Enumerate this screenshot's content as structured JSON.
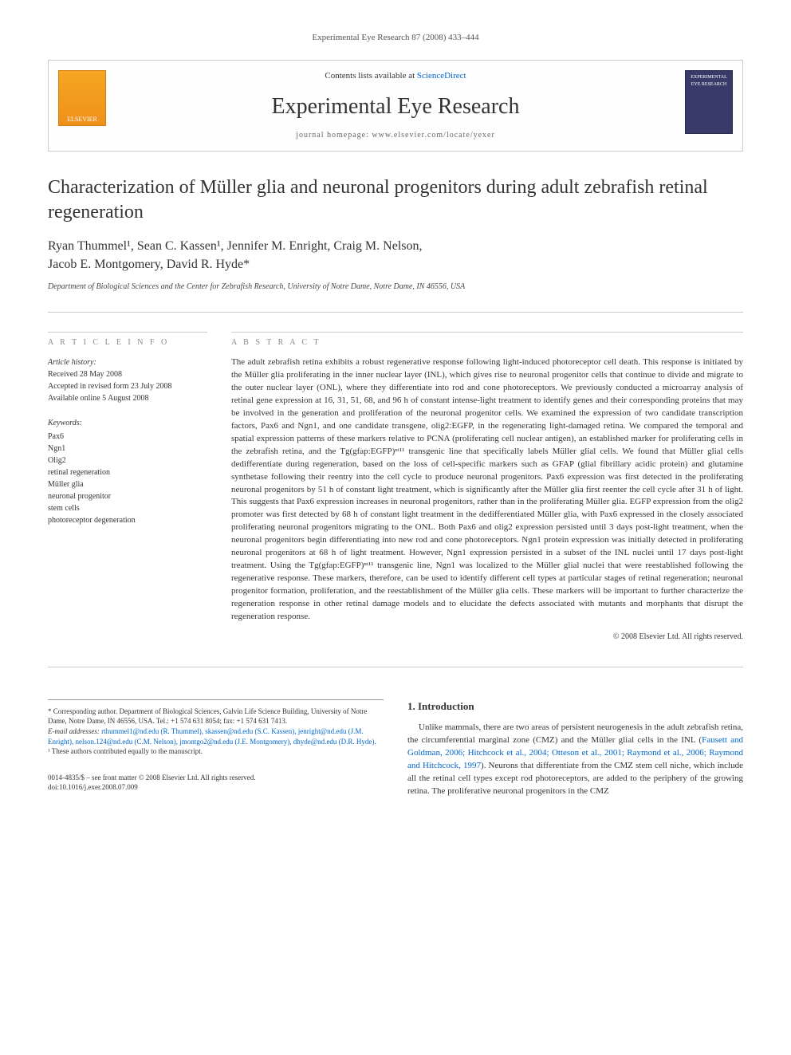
{
  "running_head": "Experimental Eye Research 87 (2008) 433–444",
  "masthead": {
    "contents_line_pre": "Contents lists available at ",
    "contents_line_link": "ScienceDirect",
    "journal_name": "Experimental Eye Research",
    "homepage_pre": "journal homepage: ",
    "homepage_url": "www.elsevier.com/locate/yexer",
    "logo_left_text": "ELSEVIER",
    "logo_right_text": "EXPERIMENTAL EYE RESEARCH"
  },
  "title": "Characterization of Müller glia and neuronal progenitors during adult zebrafish retinal regeneration",
  "authors_line1": "Ryan Thummel¹, Sean C. Kassen¹, Jennifer M. Enright, Craig M. Nelson,",
  "authors_line2": "Jacob E. Montgomery, David R. Hyde*",
  "affiliation": "Department of Biological Sciences and the Center for Zebrafish Research, University of Notre Dame, Notre Dame, IN 46556, USA",
  "labels": {
    "article_info": "A R T I C L E   I N F O",
    "abstract": "A B S T R A C T",
    "history": "Article history:",
    "keywords": "Keywords:"
  },
  "history": {
    "received": "Received 28 May 2008",
    "accepted": "Accepted in revised form 23 July 2008",
    "online": "Available online 5 August 2008"
  },
  "keywords": [
    "Pax6",
    "Ngn1",
    "Olig2",
    "retinal regeneration",
    "Müller glia",
    "neuronal progenitor",
    "stem cells",
    "photoreceptor degeneration"
  ],
  "abstract": "The adult zebrafish retina exhibits a robust regenerative response following light-induced photoreceptor cell death. This response is initiated by the Müller glia proliferating in the inner nuclear layer (INL), which gives rise to neuronal progenitor cells that continue to divide and migrate to the outer nuclear layer (ONL), where they differentiate into rod and cone photoreceptors. We previously conducted a microarray analysis of retinal gene expression at 16, 31, 51, 68, and 96 h of constant intense-light treatment to identify genes and their corresponding proteins that may be involved in the generation and proliferation of the neuronal progenitor cells. We examined the expression of two candidate transcription factors, Pax6 and Ngn1, and one candidate transgene, olig2:EGFP, in the regenerating light-damaged retina. We compared the temporal and spatial expression patterns of these markers relative to PCNA (proliferating cell nuclear antigen), an established marker for proliferating cells in the zebrafish retina, and the Tg(gfap:EGFP)ⁿᵗ¹¹ transgenic line that specifically labels Müller glial cells. We found that Müller glial cells dedifferentiate during regeneration, based on the loss of cell-specific markers such as GFAP (glial fibrillary acidic protein) and glutamine synthetase following their reentry into the cell cycle to produce neuronal progenitors. Pax6 expression was first detected in the proliferating neuronal progenitors by 51 h of constant light treatment, which is significantly after the Müller glia first reenter the cell cycle after 31 h of light. This suggests that Pax6 expression increases in neuronal progenitors, rather than in the proliferating Müller glia. EGFP expression from the olig2 promoter was first detected by 68 h of constant light treatment in the dedifferentiated Müller glia, with Pax6 expressed in the closely associated proliferating neuronal progenitors migrating to the ONL. Both Pax6 and olig2 expression persisted until 3 days post-light treatment, when the neuronal progenitors begin differentiating into new rod and cone photoreceptors. Ngn1 protein expression was initially detected in proliferating neuronal progenitors at 68 h of light treatment. However, Ngn1 expression persisted in a subset of the INL nuclei until 17 days post-light treatment. Using the Tg(gfap:EGFP)ⁿᵗ¹¹ transgenic line, Ngn1 was localized to the Müller glial nuclei that were reestablished following the regenerative response. These markers, therefore, can be used to identify different cell types at particular stages of retinal regeneration; neuronal progenitor formation, proliferation, and the reestablishment of the Müller glia cells. These markers will be important to further characterize the regeneration response in other retinal damage models and to elucidate the defects associated with mutants and morphants that disrupt the regeneration response.",
  "copyright": "© 2008 Elsevier Ltd. All rights reserved.",
  "intro": {
    "heading": "1. Introduction",
    "text_pre": "Unlike mammals, there are two areas of persistent neurogenesis in the adult zebrafish retina, the circumferential marginal zone (CMZ) and the Müller glial cells in the INL (",
    "refs": "Fausett and Goldman, 2006; Hitchcock et al., 2004; Otteson et al., 2001; Raymond et al., 2006; Raymond and Hitchcock, 1997",
    "text_post": "). Neurons that differentiate from the CMZ stem cell niche, which include all the retinal cell types except rod photoreceptors, are added to the periphery of the growing retina. The proliferative neuronal progenitors in the CMZ"
  },
  "footnotes": {
    "corresponding": "* Corresponding author. Department of Biological Sciences, Galvin Life Science Building, University of Notre Dame, Notre Dame, IN 46556, USA. Tel.: +1 574 631 8054; fax: +1 574 631 7413.",
    "emails_label": "E-mail addresses: ",
    "emails": "rthummel1@nd.edu (R. Thummel), skassen@nd.edu (S.C. Kassen), jenright@nd.edu (J.M. Enright), nelson.124@nd.edu (C.M. Nelson), jmontgo2@nd.edu (J.E. Montgomery), dhyde@nd.edu (D.R. Hyde).",
    "author_footnote": "¹ These authors contributed equally to the manuscript."
  },
  "doi": {
    "line1": "0014-4835/$ – see front matter © 2008 Elsevier Ltd. All rights reserved.",
    "line2": "doi:10.1016/j.exer.2008.07.009"
  }
}
